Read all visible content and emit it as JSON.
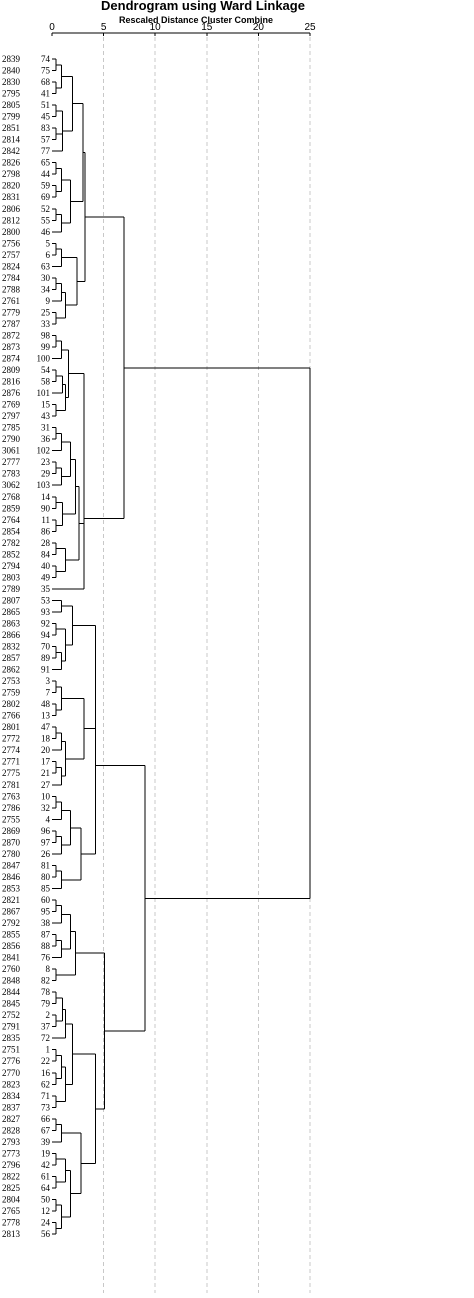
{
  "chart_data": {
    "type": "dendrogram",
    "title": "Dendrogram using Ward Linkage",
    "subtitle": "Rescaled Distance Cluster Combine",
    "xlim": [
      0,
      25
    ],
    "x_ticks": [
      "0",
      "5",
      "10",
      "15",
      "20",
      "25"
    ],
    "grid": true,
    "leaves": [
      {
        "label": "2839",
        "case": "74"
      },
      {
        "label": "2840",
        "case": "75"
      },
      {
        "label": "2830",
        "case": "68"
      },
      {
        "label": "2795",
        "case": "41"
      },
      {
        "label": "2805",
        "case": "51"
      },
      {
        "label": "2799",
        "case": "45"
      },
      {
        "label": "2851",
        "case": "83"
      },
      {
        "label": "2814",
        "case": "57"
      },
      {
        "label": "2842",
        "case": "77"
      },
      {
        "label": "2826",
        "case": "65"
      },
      {
        "label": "2798",
        "case": "44"
      },
      {
        "label": "2820",
        "case": "59"
      },
      {
        "label": "2831",
        "case": "69"
      },
      {
        "label": "2806",
        "case": "52"
      },
      {
        "label": "2812",
        "case": "55"
      },
      {
        "label": "2800",
        "case": "46"
      },
      {
        "label": "2756",
        "case": "5"
      },
      {
        "label": "2757",
        "case": "6"
      },
      {
        "label": "2824",
        "case": "63"
      },
      {
        "label": "2784",
        "case": "30"
      },
      {
        "label": "2788",
        "case": "34"
      },
      {
        "label": "2761",
        "case": "9"
      },
      {
        "label": "2779",
        "case": "25"
      },
      {
        "label": "2787",
        "case": "33"
      },
      {
        "label": "2872",
        "case": "98"
      },
      {
        "label": "2873",
        "case": "99"
      },
      {
        "label": "2874",
        "case": "100"
      },
      {
        "label": "2809",
        "case": "54"
      },
      {
        "label": "2816",
        "case": "58"
      },
      {
        "label": "2876",
        "case": "101"
      },
      {
        "label": "2769",
        "case": "15"
      },
      {
        "label": "2797",
        "case": "43"
      },
      {
        "label": "2785",
        "case": "31"
      },
      {
        "label": "2790",
        "case": "36"
      },
      {
        "label": "3061",
        "case": "102"
      },
      {
        "label": "2777",
        "case": "23"
      },
      {
        "label": "2783",
        "case": "29"
      },
      {
        "label": "3062",
        "case": "103"
      },
      {
        "label": "2768",
        "case": "14"
      },
      {
        "label": "2859",
        "case": "90"
      },
      {
        "label": "2764",
        "case": "11"
      },
      {
        "label": "2854",
        "case": "86"
      },
      {
        "label": "2782",
        "case": "28"
      },
      {
        "label": "2852",
        "case": "84"
      },
      {
        "label": "2794",
        "case": "40"
      },
      {
        "label": "2803",
        "case": "49"
      },
      {
        "label": "2789",
        "case": "35"
      },
      {
        "label": "2807",
        "case": "53"
      },
      {
        "label": "2865",
        "case": "93"
      },
      {
        "label": "2863",
        "case": "92"
      },
      {
        "label": "2866",
        "case": "94"
      },
      {
        "label": "2832",
        "case": "70"
      },
      {
        "label": "2857",
        "case": "89"
      },
      {
        "label": "2862",
        "case": "91"
      },
      {
        "label": "2753",
        "case": "3"
      },
      {
        "label": "2759",
        "case": "7"
      },
      {
        "label": "2802",
        "case": "48"
      },
      {
        "label": "2766",
        "case": "13"
      },
      {
        "label": "2801",
        "case": "47"
      },
      {
        "label": "2772",
        "case": "18"
      },
      {
        "label": "2774",
        "case": "20"
      },
      {
        "label": "2771",
        "case": "17"
      },
      {
        "label": "2775",
        "case": "21"
      },
      {
        "label": "2781",
        "case": "27"
      },
      {
        "label": "2763",
        "case": "10"
      },
      {
        "label": "2786",
        "case": "32"
      },
      {
        "label": "2755",
        "case": "4"
      },
      {
        "label": "2869",
        "case": "96"
      },
      {
        "label": "2870",
        "case": "97"
      },
      {
        "label": "2780",
        "case": "26"
      },
      {
        "label": "2847",
        "case": "81"
      },
      {
        "label": "2846",
        "case": "80"
      },
      {
        "label": "2853",
        "case": "85"
      },
      {
        "label": "2821",
        "case": "60"
      },
      {
        "label": "2867",
        "case": "95"
      },
      {
        "label": "2792",
        "case": "38"
      },
      {
        "label": "2855",
        "case": "87"
      },
      {
        "label": "2856",
        "case": "88"
      },
      {
        "label": "2841",
        "case": "76"
      },
      {
        "label": "2760",
        "case": "8"
      },
      {
        "label": "2848",
        "case": "82"
      },
      {
        "label": "2844",
        "case": "78"
      },
      {
        "label": "2845",
        "case": "79"
      },
      {
        "label": "2752",
        "case": "2"
      },
      {
        "label": "2791",
        "case": "37"
      },
      {
        "label": "2835",
        "case": "72"
      },
      {
        "label": "2751",
        "case": "1"
      },
      {
        "label": "2776",
        "case": "22"
      },
      {
        "label": "2770",
        "case": "16"
      },
      {
        "label": "2823",
        "case": "62"
      },
      {
        "label": "2834",
        "case": "71"
      },
      {
        "label": "2837",
        "case": "73"
      },
      {
        "label": "2827",
        "case": "66"
      },
      {
        "label": "2828",
        "case": "67"
      },
      {
        "label": "2793",
        "case": "39"
      },
      {
        "label": "2773",
        "case": "19"
      },
      {
        "label": "2796",
        "case": "42"
      },
      {
        "label": "2822",
        "case": "61"
      },
      {
        "label": "2825",
        "case": "64"
      },
      {
        "label": "2804",
        "case": "50"
      },
      {
        "label": "2765",
        "case": "12"
      },
      {
        "label": "2778",
        "case": "24"
      },
      {
        "label": "2813",
        "case": "56"
      }
    ],
    "merges": [
      {
        "id": "a1",
        "children": [
          "L:0",
          "L:1"
        ],
        "h": 0.4
      },
      {
        "id": "a2",
        "children": [
          "L:2",
          "L:3"
        ],
        "h": 0.4
      },
      {
        "id": "a3",
        "children": [
          "a1",
          "a2"
        ],
        "h": 0.9
      },
      {
        "id": "b1",
        "children": [
          "L:4",
          "L:5"
        ],
        "h": 0.4
      },
      {
        "id": "b2",
        "children": [
          "L:6",
          "L:7"
        ],
        "h": 0.4
      },
      {
        "id": "b3",
        "children": [
          "b1",
          "b2",
          "L:8"
        ],
        "h": 1.0
      },
      {
        "id": "a4",
        "children": [
          "a3",
          "b3"
        ],
        "h": 2.0
      },
      {
        "id": "c1",
        "children": [
          "L:9",
          "L:10"
        ],
        "h": 0.4
      },
      {
        "id": "c2",
        "children": [
          "L:11",
          "L:12"
        ],
        "h": 0.4
      },
      {
        "id": "c3",
        "children": [
          "c1",
          "c2"
        ],
        "h": 0.9
      },
      {
        "id": "c4",
        "children": [
          "L:13",
          "L:14"
        ],
        "h": 0.4
      },
      {
        "id": "c5",
        "children": [
          "c4",
          "L:15"
        ],
        "h": 0.9
      },
      {
        "id": "c6",
        "children": [
          "c3",
          "c5"
        ],
        "h": 1.8
      },
      {
        "id": "A",
        "children": [
          "a4",
          "c6"
        ],
        "h": 3.0
      },
      {
        "id": "d1",
        "children": [
          "L:16",
          "L:17"
        ],
        "h": 0.4
      },
      {
        "id": "d2",
        "children": [
          "d1",
          "L:18"
        ],
        "h": 0.9
      },
      {
        "id": "e1",
        "children": [
          "L:19",
          "L:20"
        ],
        "h": 0.4
      },
      {
        "id": "e2",
        "children": [
          "e1",
          "L:21"
        ],
        "h": 0.9
      },
      {
        "id": "e3",
        "children": [
          "L:22",
          "L:23"
        ],
        "h": 0.4
      },
      {
        "id": "e4",
        "children": [
          "e2",
          "e3"
        ],
        "h": 1.3
      },
      {
        "id": "d3",
        "children": [
          "d2",
          "e4"
        ],
        "h": 2.4
      },
      {
        "id": "B",
        "children": [
          "A",
          "d3"
        ],
        "h": 3.2
      },
      {
        "id": "f1",
        "children": [
          "L:24",
          "L:25"
        ],
        "h": 0.4
      },
      {
        "id": "f2",
        "children": [
          "f1",
          "L:26"
        ],
        "h": 0.9
      },
      {
        "id": "g1",
        "children": [
          "L:27",
          "L:28"
        ],
        "h": 0.4
      },
      {
        "id": "g2",
        "children": [
          "g1",
          "L:29"
        ],
        "h": 1.0
      },
      {
        "id": "g3",
        "children": [
          "L:30",
          "L:31"
        ],
        "h": 0.4
      },
      {
        "id": "g4",
        "children": [
          "g2",
          "g3"
        ],
        "h": 1.3
      },
      {
        "id": "f3",
        "children": [
          "f2",
          "g4"
        ],
        "h": 1.6
      },
      {
        "id": "h1",
        "children": [
          "L:32",
          "L:33"
        ],
        "h": 0.4
      },
      {
        "id": "h2",
        "children": [
          "h1",
          "L:34"
        ],
        "h": 0.9
      },
      {
        "id": "h3",
        "children": [
          "L:35",
          "L:36"
        ],
        "h": 0.4
      },
      {
        "id": "h4",
        "children": [
          "h3",
          "L:37"
        ],
        "h": 0.9
      },
      {
        "id": "h5",
        "children": [
          "h2",
          "h4"
        ],
        "h": 1.8
      },
      {
        "id": "i1",
        "children": [
          "L:38",
          "L:39"
        ],
        "h": 0.4
      },
      {
        "id": "i2",
        "children": [
          "L:40",
          "L:41"
        ],
        "h": 0.4
      },
      {
        "id": "i3",
        "children": [
          "i1",
          "i2"
        ],
        "h": 1.0
      },
      {
        "id": "h6",
        "children": [
          "h5",
          "i3"
        ],
        "h": 2.3
      },
      {
        "id": "j1",
        "children": [
          "L:42",
          "L:43"
        ],
        "h": 0.4
      },
      {
        "id": "j2",
        "children": [
          "L:44",
          "L:45"
        ],
        "h": 0.4
      },
      {
        "id": "j3",
        "children": [
          "j1",
          "j2"
        ],
        "h": 1.3
      },
      {
        "id": "h7",
        "children": [
          "h6",
          "j3"
        ],
        "h": 2.6
      },
      {
        "id": "f4",
        "children": [
          "f3",
          "h7"
        ],
        "h": 3.1
      },
      {
        "id": "C",
        "children": [
          "f4",
          "L:46"
        ],
        "h": 3.1
      },
      {
        "id": "TOP1",
        "children": [
          "B",
          "C"
        ],
        "h": 7.0
      },
      {
        "id": "k1",
        "children": [
          "L:47",
          "L:48"
        ],
        "h": 0.9
      },
      {
        "id": "k2",
        "children": [
          "L:49",
          "L:50"
        ],
        "h": 0.4
      },
      {
        "id": "k3",
        "children": [
          "L:51",
          "L:52"
        ],
        "h": 0.4
      },
      {
        "id": "k4",
        "children": [
          "k3",
          "L:53"
        ],
        "h": 0.9
      },
      {
        "id": "k5",
        "children": [
          "k2",
          "k4"
        ],
        "h": 1.3
      },
      {
        "id": "k6",
        "children": [
          "k1",
          "k5"
        ],
        "h": 2.0
      },
      {
        "id": "l1",
        "children": [
          "L:54",
          "L:55"
        ],
        "h": 0.4
      },
      {
        "id": "l2",
        "children": [
          "L:56",
          "L:57"
        ],
        "h": 0.4
      },
      {
        "id": "l3",
        "children": [
          "l1",
          "l2"
        ],
        "h": 0.9
      },
      {
        "id": "l4",
        "children": [
          "L:58",
          "L:59"
        ],
        "h": 0.4
      },
      {
        "id": "l5",
        "children": [
          "l4",
          "L:60"
        ],
        "h": 0.9
      },
      {
        "id": "l6",
        "children": [
          "L:61",
          "L:62"
        ],
        "h": 0.4
      },
      {
        "id": "l7",
        "children": [
          "l6",
          "L:63"
        ],
        "h": 0.9
      },
      {
        "id": "l8",
        "children": [
          "l5",
          "l7"
        ],
        "h": 1.3
      },
      {
        "id": "l9",
        "children": [
          "l3",
          "l8"
        ],
        "h": 3.1
      },
      {
        "id": "D",
        "children": [
          "k6",
          "l9"
        ],
        "h": 4.2
      },
      {
        "id": "m1",
        "children": [
          "L:64",
          "L:65"
        ],
        "h": 0.4
      },
      {
        "id": "m2",
        "children": [
          "m1",
          "L:66"
        ],
        "h": 0.9
      },
      {
        "id": "m3",
        "children": [
          "L:67",
          "L:68"
        ],
        "h": 0.4
      },
      {
        "id": "m4",
        "children": [
          "m3",
          "L:69"
        ],
        "h": 0.9
      },
      {
        "id": "m5",
        "children": [
          "m2",
          "m4"
        ],
        "h": 1.8
      },
      {
        "id": "m6",
        "children": [
          "L:70",
          "L:71"
        ],
        "h": 0.4
      },
      {
        "id": "m7",
        "children": [
          "m6",
          "L:72"
        ],
        "h": 0.9
      },
      {
        "id": "m8",
        "children": [
          "m5",
          "m7"
        ],
        "h": 2.8
      },
      {
        "id": "E",
        "children": [
          "D",
          "m8"
        ],
        "h": 4.2
      },
      {
        "id": "n1",
        "children": [
          "L:73",
          "L:74"
        ],
        "h": 0.4
      },
      {
        "id": "n2",
        "children": [
          "n1",
          "L:75"
        ],
        "h": 0.9
      },
      {
        "id": "n3",
        "children": [
          "L:76",
          "L:77"
        ],
        "h": 0.4
      },
      {
        "id": "n4",
        "children": [
          "n3",
          "L:78"
        ],
        "h": 0.9
      },
      {
        "id": "n5",
        "children": [
          "n2",
          "n4"
        ],
        "h": 1.8
      },
      {
        "id": "n6",
        "children": [
          "L:79",
          "L:80"
        ],
        "h": 0.4
      },
      {
        "id": "n7",
        "children": [
          "n5",
          "n6"
        ],
        "h": 2.3
      },
      {
        "id": "o1",
        "children": [
          "L:81",
          "L:82"
        ],
        "h": 0.4
      },
      {
        "id": "o2",
        "children": [
          "L:83",
          "L:84"
        ],
        "h": 0.4
      },
      {
        "id": "o3",
        "children": [
          "o1",
          "o2"
        ],
        "h": 1.0
      },
      {
        "id": "o4",
        "children": [
          "o3",
          "L:85"
        ],
        "h": 1.3
      },
      {
        "id": "p1",
        "children": [
          "L:86",
          "L:87"
        ],
        "h": 0.4
      },
      {
        "id": "p2",
        "children": [
          "L:88",
          "L:89"
        ],
        "h": 0.4
      },
      {
        "id": "p3",
        "children": [
          "p1",
          "p2"
        ],
        "h": 0.9
      },
      {
        "id": "p4",
        "children": [
          "L:90",
          "L:91"
        ],
        "h": 0.4
      },
      {
        "id": "p5",
        "children": [
          "p3",
          "p4"
        ],
        "h": 1.3
      },
      {
        "id": "p6",
        "children": [
          "o4",
          "p5"
        ],
        "h": 2.0
      },
      {
        "id": "q1",
        "children": [
          "L:92",
          "L:93"
        ],
        "h": 0.4
      },
      {
        "id": "q2",
        "children": [
          "q1",
          "L:94"
        ],
        "h": 0.9
      },
      {
        "id": "q3",
        "children": [
          "L:95",
          "L:96"
        ],
        "h": 0.4
      },
      {
        "id": "q4",
        "children": [
          "L:97",
          "L:98"
        ],
        "h": 0.4
      },
      {
        "id": "q5",
        "children": [
          "q3",
          "q4"
        ],
        "h": 1.3
      },
      {
        "id": "q6",
        "children": [
          "L:99",
          "L:100"
        ],
        "h": 0.4
      },
      {
        "id": "q7",
        "children": [
          "L:101",
          "L:102"
        ],
        "h": 0.4
      },
      {
        "id": "q8",
        "children": [
          "q6",
          "q7"
        ],
        "h": 0.9
      },
      {
        "id": "q9",
        "children": [
          "q5",
          "q8"
        ],
        "h": 1.8
      },
      {
        "id": "q10",
        "children": [
          "q2",
          "q9"
        ],
        "h": 2.8
      },
      {
        "id": "r1",
        "children": [
          "p6",
          "q10"
        ],
        "h": 4.2
      },
      {
        "id": "F",
        "children": [
          "n7",
          "r1"
        ],
        "h": 5.1
      },
      {
        "id": "TOP2",
        "children": [
          "E",
          "F"
        ],
        "h": 9.0
      },
      {
        "id": "ROOT",
        "children": [
          "TOP1",
          "TOP2"
        ],
        "h": 25
      }
    ]
  }
}
